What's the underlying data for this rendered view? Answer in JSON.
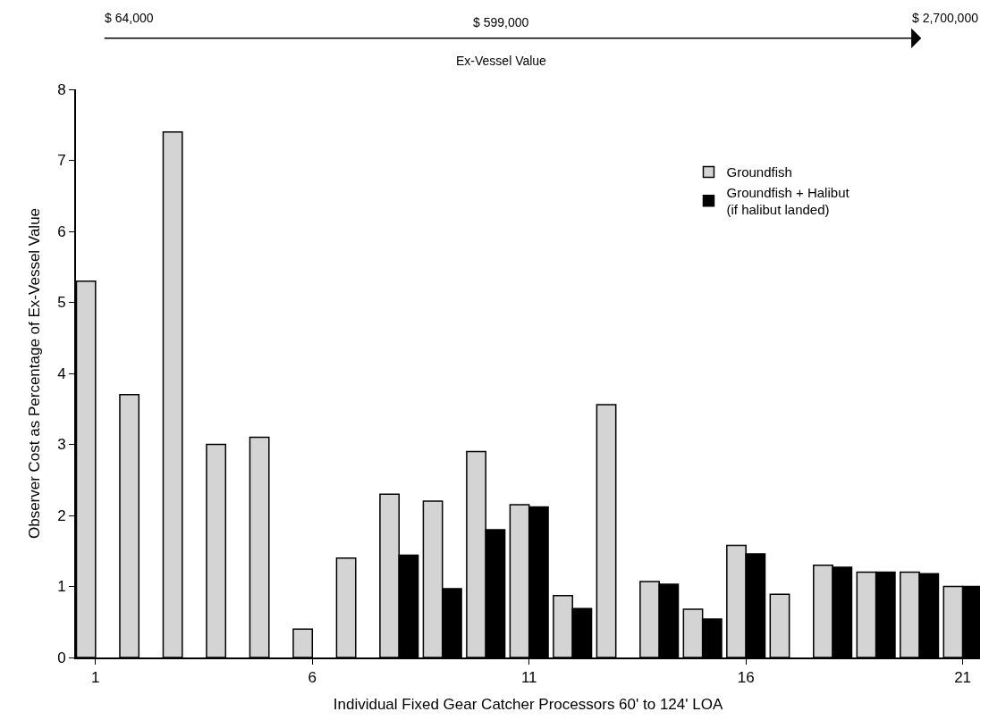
{
  "chart_data": {
    "type": "bar",
    "xlabel": "Individual Fixed Gear Catcher Processors 60' to 124' LOA",
    "ylabel": "Observer Cost as Percentage of Ex-Vessel Value",
    "x": [
      1,
      2,
      3,
      4,
      5,
      6,
      7,
      8,
      9,
      10,
      11,
      12,
      13,
      14,
      15,
      16,
      17,
      18,
      19,
      20,
      21
    ],
    "series": [
      {
        "name": "Groundfish",
        "color": "#d4d4d4",
        "values": [
          5.3,
          3.7,
          7.4,
          3.0,
          3.1,
          0.4,
          1.4,
          2.3,
          2.2,
          2.9,
          2.15,
          0.87,
          3.56,
          1.07,
          0.68,
          1.58,
          0.89,
          1.3,
          1.2,
          1.2,
          1.0
        ]
      },
      {
        "name": "Groundfish + Halibut\n(if halibut landed)",
        "color": "#000000",
        "values": [
          null,
          null,
          null,
          null,
          null,
          null,
          null,
          1.44,
          0.97,
          1.8,
          2.12,
          0.69,
          null,
          1.03,
          0.54,
          1.46,
          null,
          1.27,
          1.2,
          1.18,
          1.0
        ]
      }
    ],
    "xlim": [
      0.55,
      21.4
    ],
    "xticks": [
      1,
      6,
      11,
      16,
      21
    ],
    "ylim": [
      0,
      8
    ],
    "yticks": [
      0,
      1,
      2,
      3,
      4,
      5,
      6,
      7,
      8
    ],
    "legend": "top right",
    "annotations": [
      "$ 64,000",
      "$ 599,000",
      "$ 2,700,000",
      "Ex-Vessel Value"
    ]
  }
}
